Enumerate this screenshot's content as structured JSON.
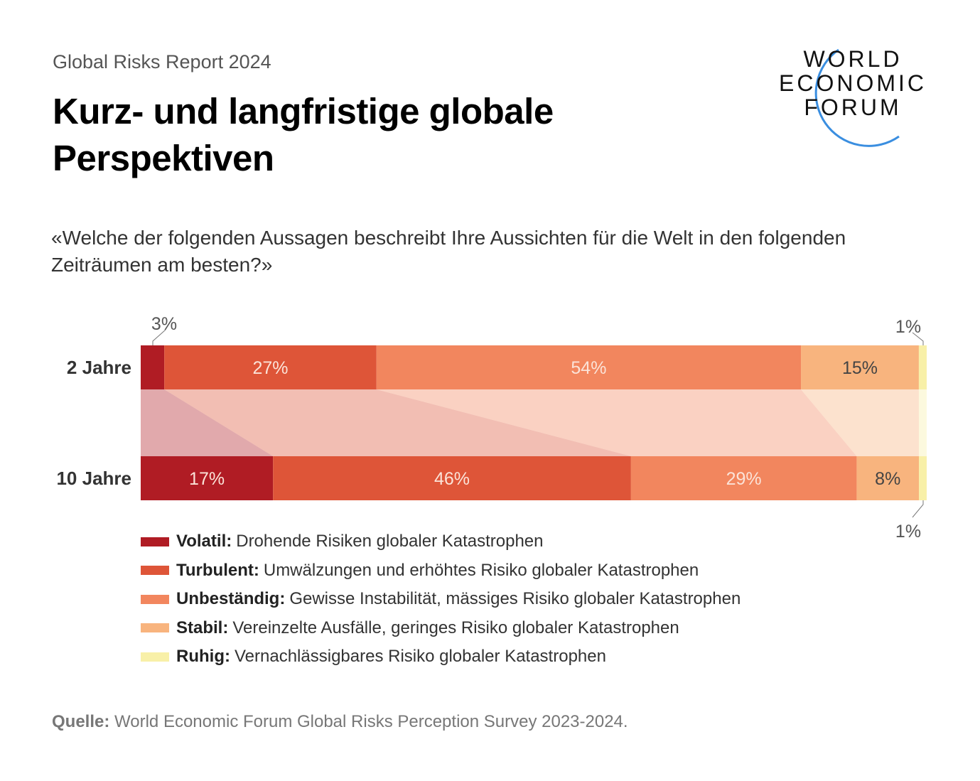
{
  "header": {
    "kicker": "Global Risks Report 2024",
    "title": "Kurz- und langfristige globale Perspektiven",
    "question": "«Welche der folgenden Aussagen beschreibt Ihre Aussichten für die Welt in den folgenden Zeiträumen am besten?»"
  },
  "logo": {
    "lines": [
      "WORLD",
      "ECONOMIC",
      "FORUM"
    ],
    "color": "#3a8ee0"
  },
  "chart_data": {
    "type": "bar",
    "orientation": "horizontal-stacked-100",
    "categories": [
      "2 Jahre",
      "10 Jahre"
    ],
    "series": [
      {
        "name": "Volatil",
        "values": [
          3,
          17
        ],
        "color": "#b01c24"
      },
      {
        "name": "Turbulent",
        "values": [
          27,
          46
        ],
        "color": "#de5538"
      },
      {
        "name": "Unbeständig",
        "values": [
          54,
          29
        ],
        "color": "#f2865e"
      },
      {
        "name": "Stabil",
        "values": [
          15,
          8
        ],
        "color": "#f8b47e"
      },
      {
        "name": "Ruhig",
        "values": [
          1,
          1
        ],
        "color": "#f8f0a8"
      }
    ],
    "data_labels": [
      [
        "3%",
        "27%",
        "54%",
        "15%",
        "1%"
      ],
      [
        "17%",
        "46%",
        "29%",
        "8%",
        "1%"
      ]
    ],
    "legend_placement": "bottom"
  },
  "legend": [
    {
      "term": "Volatil:",
      "desc": "Drohende Risiken globaler Katastrophen"
    },
    {
      "term": "Turbulent:",
      "desc": "Umwälzungen und erhöhtes Risiko globaler Katastrophen"
    },
    {
      "term": "Unbeständig:",
      "desc": "Gewisse Instabilität, mässiges Risiko globaler Katastrophen"
    },
    {
      "term": "Stabil:",
      "desc": "Vereinzelte Ausfälle, geringes Risiko globaler Katastrophen"
    },
    {
      "term": "Ruhig:",
      "desc": "Vernachlässigbares Risiko globaler Katastrophen"
    }
  ],
  "source": {
    "label": "Quelle:",
    "text": "World Economic Forum Global Risks Perception Survey 2023-2024."
  }
}
